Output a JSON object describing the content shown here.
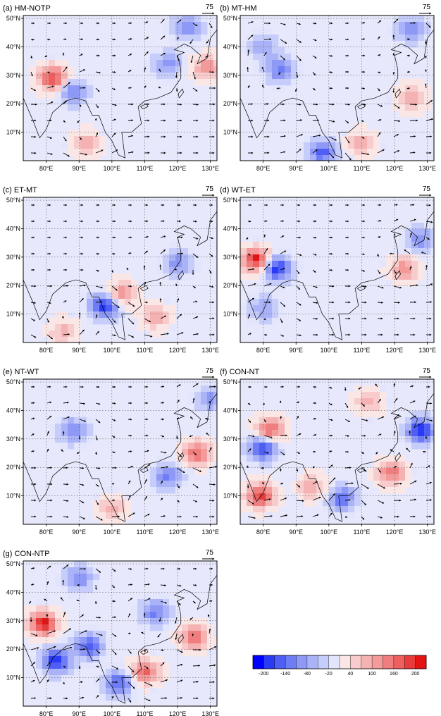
{
  "chart_data": {
    "type": "heatmap",
    "overlay": "wind vector arrows",
    "panels": [
      {
        "label": "(a) HM-NOTP",
        "hotspots": [
          {
            "lon": 82,
            "lat": 29,
            "v": 200
          },
          {
            "lon": 88,
            "lat": 24,
            "v": -120
          },
          {
            "lon": 117,
            "lat": 34,
            "v": -100
          },
          {
            "lon": 129,
            "lat": 33,
            "v": 120
          },
          {
            "lon": 123,
            "lat": 47,
            "v": -110
          },
          {
            "lon": 92,
            "lat": 6,
            "v": 90
          }
        ]
      },
      {
        "label": "(b) MT-HM",
        "hotspots": [
          {
            "lon": 85,
            "lat": 32,
            "v": -120
          },
          {
            "lon": 80,
            "lat": 40,
            "v": -80
          },
          {
            "lon": 125,
            "lat": 22,
            "v": 110
          },
          {
            "lon": 125,
            "lat": 46,
            "v": -110
          },
          {
            "lon": 98,
            "lat": 3,
            "v": -150
          },
          {
            "lon": 110,
            "lat": 6,
            "v": 90
          }
        ]
      },
      {
        "label": "(c) ET-MT",
        "hotspots": [
          {
            "lon": 98,
            "lat": 13,
            "v": -200
          },
          {
            "lon": 103,
            "lat": 17,
            "v": 130
          },
          {
            "lon": 120,
            "lat": 28,
            "v": -100
          },
          {
            "lon": 113,
            "lat": 9,
            "v": 90
          },
          {
            "lon": 85,
            "lat": 4,
            "v": 80
          }
        ]
      },
      {
        "label": "(d) WT-ET",
        "hotspots": [
          {
            "lon": 78,
            "lat": 29,
            "v": 220
          },
          {
            "lon": 84,
            "lat": 26,
            "v": -200
          },
          {
            "lon": 123,
            "lat": 26,
            "v": 120
          },
          {
            "lon": 128,
            "lat": 36,
            "v": -100
          },
          {
            "lon": 80,
            "lat": 12,
            "v": -80
          }
        ]
      },
      {
        "label": "(e) NT-WT",
        "hotspots": [
          {
            "lon": 126,
            "lat": 25,
            "v": 160
          },
          {
            "lon": 117,
            "lat": 17,
            "v": -120
          },
          {
            "lon": 88,
            "lat": 33,
            "v": -110
          },
          {
            "lon": 130,
            "lat": 44,
            "v": -90
          },
          {
            "lon": 100,
            "lat": 6,
            "v": 80
          }
        ]
      },
      {
        "label": "(f) CON-NT",
        "hotspots": [
          {
            "lon": 80,
            "lat": 27,
            "v": -200
          },
          {
            "lon": 82,
            "lat": 33,
            "v": 180
          },
          {
            "lon": 79,
            "lat": 10,
            "v": 200
          },
          {
            "lon": 119,
            "lat": 18,
            "v": 150
          },
          {
            "lon": 128,
            "lat": 33,
            "v": -200
          },
          {
            "lon": 104,
            "lat": 9,
            "v": -140
          },
          {
            "lon": 95,
            "lat": 13,
            "v": 100
          },
          {
            "lon": 112,
            "lat": 43,
            "v": 90
          }
        ]
      },
      {
        "label": "(g) CON-NTP",
        "hotspots": [
          {
            "lon": 79,
            "lat": 29,
            "v": 220
          },
          {
            "lon": 83,
            "lat": 16,
            "v": -200
          },
          {
            "lon": 93,
            "lat": 21,
            "v": -160
          },
          {
            "lon": 110,
            "lat": 12,
            "v": 170
          },
          {
            "lon": 125,
            "lat": 24,
            "v": 160
          },
          {
            "lon": 113,
            "lat": 33,
            "v": -120
          },
          {
            "lon": 102,
            "lat": 8,
            "v": -150
          },
          {
            "lon": 90,
            "lat": 45,
            "v": -110
          }
        ]
      }
    ],
    "lon_ticks": [
      "80°E",
      "90°E",
      "100°E",
      "110°E",
      "120°E",
      "130°E"
    ],
    "lat_ticks": [
      "10°N",
      "20°N",
      "30°N",
      "40°N",
      "50°N"
    ],
    "lon_range": [
      73,
      132
    ],
    "lat_range": [
      0,
      51
    ],
    "vector_reference": "75",
    "colorbar": {
      "tick_labels": [
        "-200",
        "-140",
        "-80",
        "-20",
        "40",
        "100",
        "160",
        "200"
      ],
      "levels": [
        -220,
        -200,
        -170,
        -140,
        -110,
        -80,
        -50,
        -20,
        10,
        40,
        70,
        100,
        130,
        160,
        190,
        200,
        220
      ],
      "colors": [
        "#0000ff",
        "#2a3bf6",
        "#4f5ff5",
        "#6e7cf5",
        "#8e99f6",
        "#aab3f8",
        "#c7cdfa",
        "#e2e5fc",
        "#fbe6e6",
        "#f8cccc",
        "#f5b2b2",
        "#f39a9a",
        "#f07e7e",
        "#ec6060",
        "#e83c3c",
        "#e51414"
      ]
    }
  }
}
